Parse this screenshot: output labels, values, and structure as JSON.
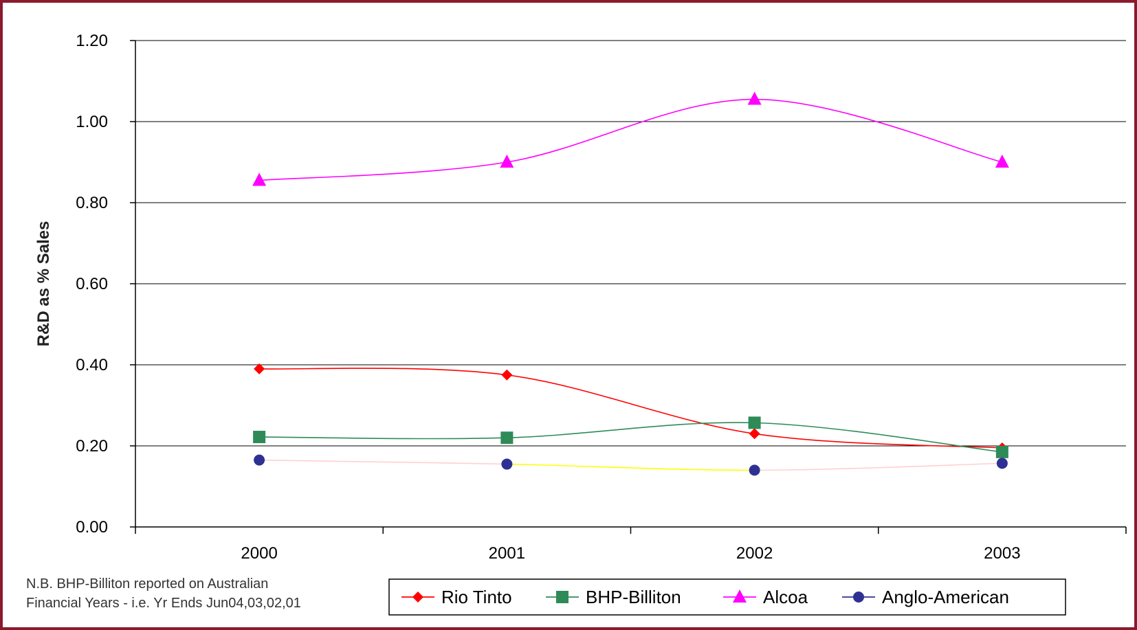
{
  "colors": {
    "frame_border": "#8b1a2e",
    "gridline": "#000000",
    "rio_tinto": "#ff0000",
    "bhp": "#2e8b57",
    "alcoa": "#ff00ff",
    "anglo": "#2f3192",
    "anglo_line_light": "#ffd0d0",
    "anglo_line_highlight": "#ffff00"
  },
  "footnote": {
    "line1": "N.B. BHP-Billiton reported on Australian",
    "line2": "Financial Years - i.e. Yr Ends Jun04,03,02,01"
  },
  "chart_data": {
    "type": "line",
    "title": "",
    "xlabel": "",
    "ylabel": "R&D as % Sales",
    "categories": [
      "2000",
      "2001",
      "2002",
      "2003"
    ],
    "ylim": [
      0,
      1.2
    ],
    "y_ticks": [
      "0.00",
      "0.20",
      "0.40",
      "0.60",
      "0.80",
      "1.00",
      "1.20"
    ],
    "y_tick_values": [
      0,
      0.2,
      0.4,
      0.6,
      0.8,
      1.0,
      1.2
    ],
    "grid": true,
    "smooth": true,
    "legend_position": "bottom",
    "series": [
      {
        "name": "Rio Tinto",
        "values": [
          0.39,
          0.375,
          0.23,
          0.195
        ],
        "marker": "diamond",
        "color_key": "rio_tinto"
      },
      {
        "name": "BHP-Billiton",
        "values": [
          0.222,
          0.22,
          0.257,
          0.185
        ],
        "marker": "square",
        "color_key": "bhp"
      },
      {
        "name": "Alcoa",
        "values": [
          0.855,
          0.9,
          1.055,
          0.9
        ],
        "marker": "triangle",
        "color_key": "alcoa"
      },
      {
        "name": "Anglo-American",
        "values": [
          0.165,
          0.155,
          0.14,
          0.157
        ],
        "marker": "circle",
        "color_key": "anglo"
      }
    ]
  }
}
